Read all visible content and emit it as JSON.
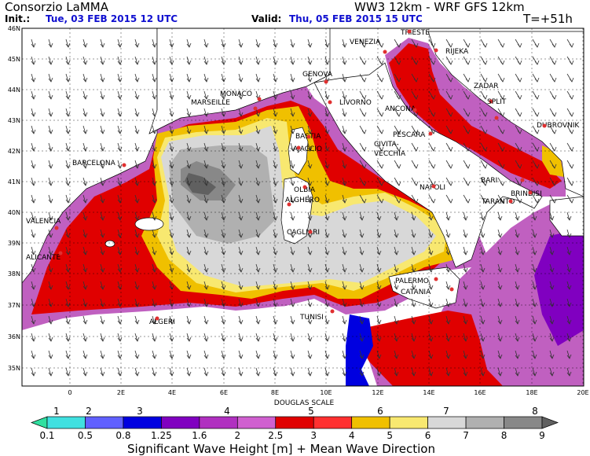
{
  "header": {
    "org": "Consorzio LaMMA",
    "model": "WW3 12km - WRF GFS 12km",
    "init_label": "Init.:",
    "init_value": "Tue, 03 FEB 2015   12 UTC",
    "valid_label": "Valid:",
    "valid_value": "Thu, 05 FEB 2015   15 UTC",
    "lead": "T=+51h"
  },
  "axes": {
    "lat_labels": [
      "46N",
      "45N",
      "44N",
      "43N",
      "42N",
      "41N",
      "40N",
      "39N",
      "38N",
      "37N",
      "36N",
      "35N"
    ],
    "lon_labels": [
      "0",
      "2E",
      "4E",
      "6E",
      "8E",
      "10E",
      "12E",
      "14E",
      "16E",
      "18E",
      "20E"
    ]
  },
  "cities": [
    {
      "name": "TRIESTE"
    },
    {
      "name": "VENEZIA"
    },
    {
      "name": "RIJEKA"
    },
    {
      "name": "GENOVA"
    },
    {
      "name": "MONACO"
    },
    {
      "name": "MARSEILLE"
    },
    {
      "name": "LIVORNO"
    },
    {
      "name": "ANCONA"
    },
    {
      "name": "ZADAR"
    },
    {
      "name": "SPLIT"
    },
    {
      "name": "DUBROVNIK"
    },
    {
      "name": "BASTIA"
    },
    {
      "name": "AJACCIO"
    },
    {
      "name": "PESCARA"
    },
    {
      "name": "CIVITA-"
    },
    {
      "name": "VECCHIA"
    },
    {
      "name": "BARCELONA"
    },
    {
      "name": "OLBIA"
    },
    {
      "name": "ALGHERO"
    },
    {
      "name": "NAPOLI"
    },
    {
      "name": "BARI"
    },
    {
      "name": "BRINDISI"
    },
    {
      "name": "TARANTO"
    },
    {
      "name": "VALENCIA"
    },
    {
      "name": "CAGLIARI"
    },
    {
      "name": "ALICANTE"
    },
    {
      "name": "PALERMO"
    },
    {
      "name": "CATANIA"
    },
    {
      "name": "TUNISI"
    },
    {
      "name": "ALGERI"
    }
  ],
  "legend": {
    "douglas_label": "DOUGLAS SCALE",
    "douglas": [
      "1",
      "2",
      "3",
      "4",
      "5",
      "6",
      "7",
      "8"
    ],
    "values": [
      "0.1",
      "0.5",
      "0.8",
      "1.25",
      "1.6",
      "2",
      "2.5",
      "3",
      "4",
      "5",
      "6",
      "7",
      "8",
      "9"
    ],
    "colors": [
      "#30e0a0",
      "#40e0e0",
      "#6060ff",
      "#0000e0",
      "#8000c0",
      "#b030c0",
      "#d060d0",
      "#e00000",
      "#ff3030",
      "#f0c000",
      "#f8e870",
      "#d8d8d8",
      "#b0b0b0",
      "#888888",
      "#606060"
    ],
    "title": "Significant Wave Height [m] + Mean Wave Direction"
  }
}
